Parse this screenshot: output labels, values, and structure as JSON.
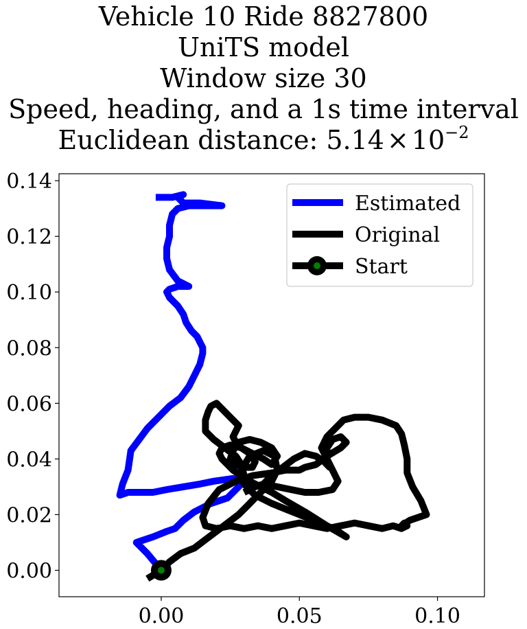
{
  "chart_data": {
    "type": "line",
    "title_lines": [
      "Vehicle 10 Ride 8827800",
      "UniTS model",
      "Window size 30",
      "Speed, heading, and a 1s time interval"
    ],
    "distance_prefix": "Euclidean distance: ",
    "distance_mantissa": "5.14",
    "distance_times": "×",
    "distance_base": "10",
    "distance_exponent": "−2",
    "xlim": [
      -0.037,
      0.117
    ],
    "ylim": [
      -0.0095,
      0.1425
    ],
    "xticks": [
      0.0,
      0.05,
      0.1
    ],
    "xtick_labels": [
      "0.00",
      "0.05",
      "0.10"
    ],
    "yticks": [
      0.0,
      0.02,
      0.04,
      0.06,
      0.08,
      0.1,
      0.12,
      0.14
    ],
    "ytick_labels": [
      "0.00",
      "0.02",
      "0.04",
      "0.06",
      "0.08",
      "0.10",
      "0.12",
      "0.14"
    ],
    "grid": false,
    "legend_position": "upper right",
    "series": [
      {
        "name": "Estimated",
        "color": "#0000ff",
        "x": [
          0.0,
          -0.005,
          -0.009,
          -0.006,
          -0.003,
          0.002,
          0.005,
          0.008,
          0.012,
          0.018,
          0.024,
          0.027,
          0.03,
          0.026,
          0.019,
          0.014,
          0.008,
          0.002,
          -0.003,
          -0.007,
          -0.012,
          -0.015,
          -0.014,
          -0.012,
          -0.011,
          -0.008,
          -0.005,
          -0.001,
          0.003,
          0.007,
          0.01,
          0.012,
          0.014,
          0.015,
          0.015,
          0.014,
          0.013,
          0.011,
          0.009,
          0.008,
          0.006,
          0.003,
          0.002,
          0.003,
          0.006,
          0.01,
          0.006,
          0.003,
          0.002,
          0.002,
          0.003,
          0.003,
          0.004,
          0.006,
          0.01,
          0.017,
          0.022,
          0.014,
          0.008,
          0.006,
          0.008,
          0.004,
          -0.002
        ],
        "y": [
          0.0,
          0.006,
          0.01,
          0.011,
          0.012,
          0.014,
          0.015,
          0.018,
          0.021,
          0.024,
          0.026,
          0.029,
          0.032,
          0.033,
          0.032,
          0.031,
          0.03,
          0.029,
          0.028,
          0.028,
          0.028,
          0.027,
          0.031,
          0.036,
          0.043,
          0.047,
          0.051,
          0.055,
          0.059,
          0.062,
          0.066,
          0.07,
          0.074,
          0.078,
          0.08,
          0.082,
          0.084,
          0.086,
          0.089,
          0.092,
          0.095,
          0.098,
          0.1,
          0.101,
          0.102,
          0.102,
          0.104,
          0.108,
          0.112,
          0.116,
          0.12,
          0.124,
          0.128,
          0.13,
          0.131,
          0.131,
          0.131,
          0.132,
          0.132,
          0.134,
          0.135,
          0.134,
          0.134
        ]
      },
      {
        "name": "Original",
        "color": "#000000",
        "x": [
          -0.005,
          0.0,
          0.003,
          0.007,
          0.012,
          0.016,
          0.02,
          0.024,
          0.028,
          0.031,
          0.034,
          0.037,
          0.04,
          0.042,
          0.041,
          0.037,
          0.032,
          0.029,
          0.03,
          0.034,
          0.04,
          0.045,
          0.05,
          0.055,
          0.06,
          0.064,
          0.067,
          0.06,
          0.052,
          0.045,
          0.04,
          0.036,
          0.032,
          0.029,
          0.026,
          0.024,
          0.022,
          0.021,
          0.022,
          0.025,
          0.029,
          0.033,
          0.037,
          0.04,
          0.042,
          0.04,
          0.036,
          0.032,
          0.028,
          0.026,
          0.025,
          0.027,
          0.03,
          0.033,
          0.034,
          0.032,
          0.029,
          0.027,
          0.026,
          0.027,
          0.028,
          0.026,
          0.024,
          0.022,
          0.02,
          0.018,
          0.017,
          0.016,
          0.016,
          0.019,
          0.023,
          0.027,
          0.029,
          0.03,
          0.031,
          0.034,
          0.037,
          0.04,
          0.044,
          0.048,
          0.052,
          0.056,
          0.059,
          0.061,
          0.06,
          0.058,
          0.06,
          0.063,
          0.066,
          0.07,
          0.075,
          0.08,
          0.085,
          0.087,
          0.088,
          0.089,
          0.089,
          0.091,
          0.094,
          0.096,
          0.09,
          0.087,
          0.088,
          0.089,
          0.087,
          0.084,
          0.08,
          0.075,
          0.07,
          0.065,
          0.06,
          0.055,
          0.05,
          0.045,
          0.04,
          0.035,
          0.03,
          0.025,
          0.02,
          0.016,
          0.015,
          0.017,
          0.021,
          0.027,
          0.033,
          0.04,
          0.045,
          0.048,
          0.05,
          0.052,
          0.056,
          0.06,
          0.065,
          0.067,
          0.065,
          0.062,
          0.06,
          0.06,
          0.062,
          0.064,
          0.062,
          0.057,
          0.052,
          0.047,
          0.042,
          0.037,
          0.034,
          0.032,
          0.03
        ],
        "y": [
          -0.003,
          0.0,
          0.003,
          0.006,
          0.008,
          0.011,
          0.014,
          0.017,
          0.02,
          0.023,
          0.026,
          0.029,
          0.032,
          0.036,
          0.041,
          0.043,
          0.041,
          0.036,
          0.031,
          0.027,
          0.024,
          0.022,
          0.02,
          0.018,
          0.016,
          0.014,
          0.012,
          0.016,
          0.021,
          0.025,
          0.028,
          0.03,
          0.032,
          0.034,
          0.036,
          0.038,
          0.04,
          0.042,
          0.044,
          0.045,
          0.044,
          0.042,
          0.04,
          0.038,
          0.041,
          0.044,
          0.046,
          0.047,
          0.046,
          0.043,
          0.04,
          0.038,
          0.037,
          0.037,
          0.039,
          0.042,
          0.044,
          0.046,
          0.048,
          0.05,
          0.052,
          0.054,
          0.056,
          0.058,
          0.06,
          0.059,
          0.057,
          0.054,
          0.05,
          0.047,
          0.044,
          0.041,
          0.038,
          0.034,
          0.031,
          0.03,
          0.031,
          0.034,
          0.037,
          0.04,
          0.042,
          0.041,
          0.039,
          0.037,
          0.04,
          0.044,
          0.048,
          0.051,
          0.054,
          0.055,
          0.055,
          0.054,
          0.052,
          0.049,
          0.045,
          0.04,
          0.035,
          0.03,
          0.025,
          0.02,
          0.018,
          0.016,
          0.017,
          0.016,
          0.015,
          0.016,
          0.015,
          0.016,
          0.017,
          0.016,
          0.015,
          0.016,
          0.017,
          0.016,
          0.015,
          0.016,
          0.015,
          0.016,
          0.015,
          0.016,
          0.019,
          0.024,
          0.029,
          0.032,
          0.034,
          0.035,
          0.036,
          0.036,
          0.036,
          0.037,
          0.038,
          0.041,
          0.044,
          0.046,
          0.048,
          0.047,
          0.044,
          0.04,
          0.036,
          0.032,
          0.029,
          0.028,
          0.028,
          0.029,
          0.03,
          0.031,
          0.03,
          0.029,
          0.028
        ]
      },
      {
        "name": "Start",
        "color": "#000000",
        "marker_color": "#008000",
        "x": [
          0.0
        ],
        "y": [
          0.0
        ]
      }
    ]
  }
}
